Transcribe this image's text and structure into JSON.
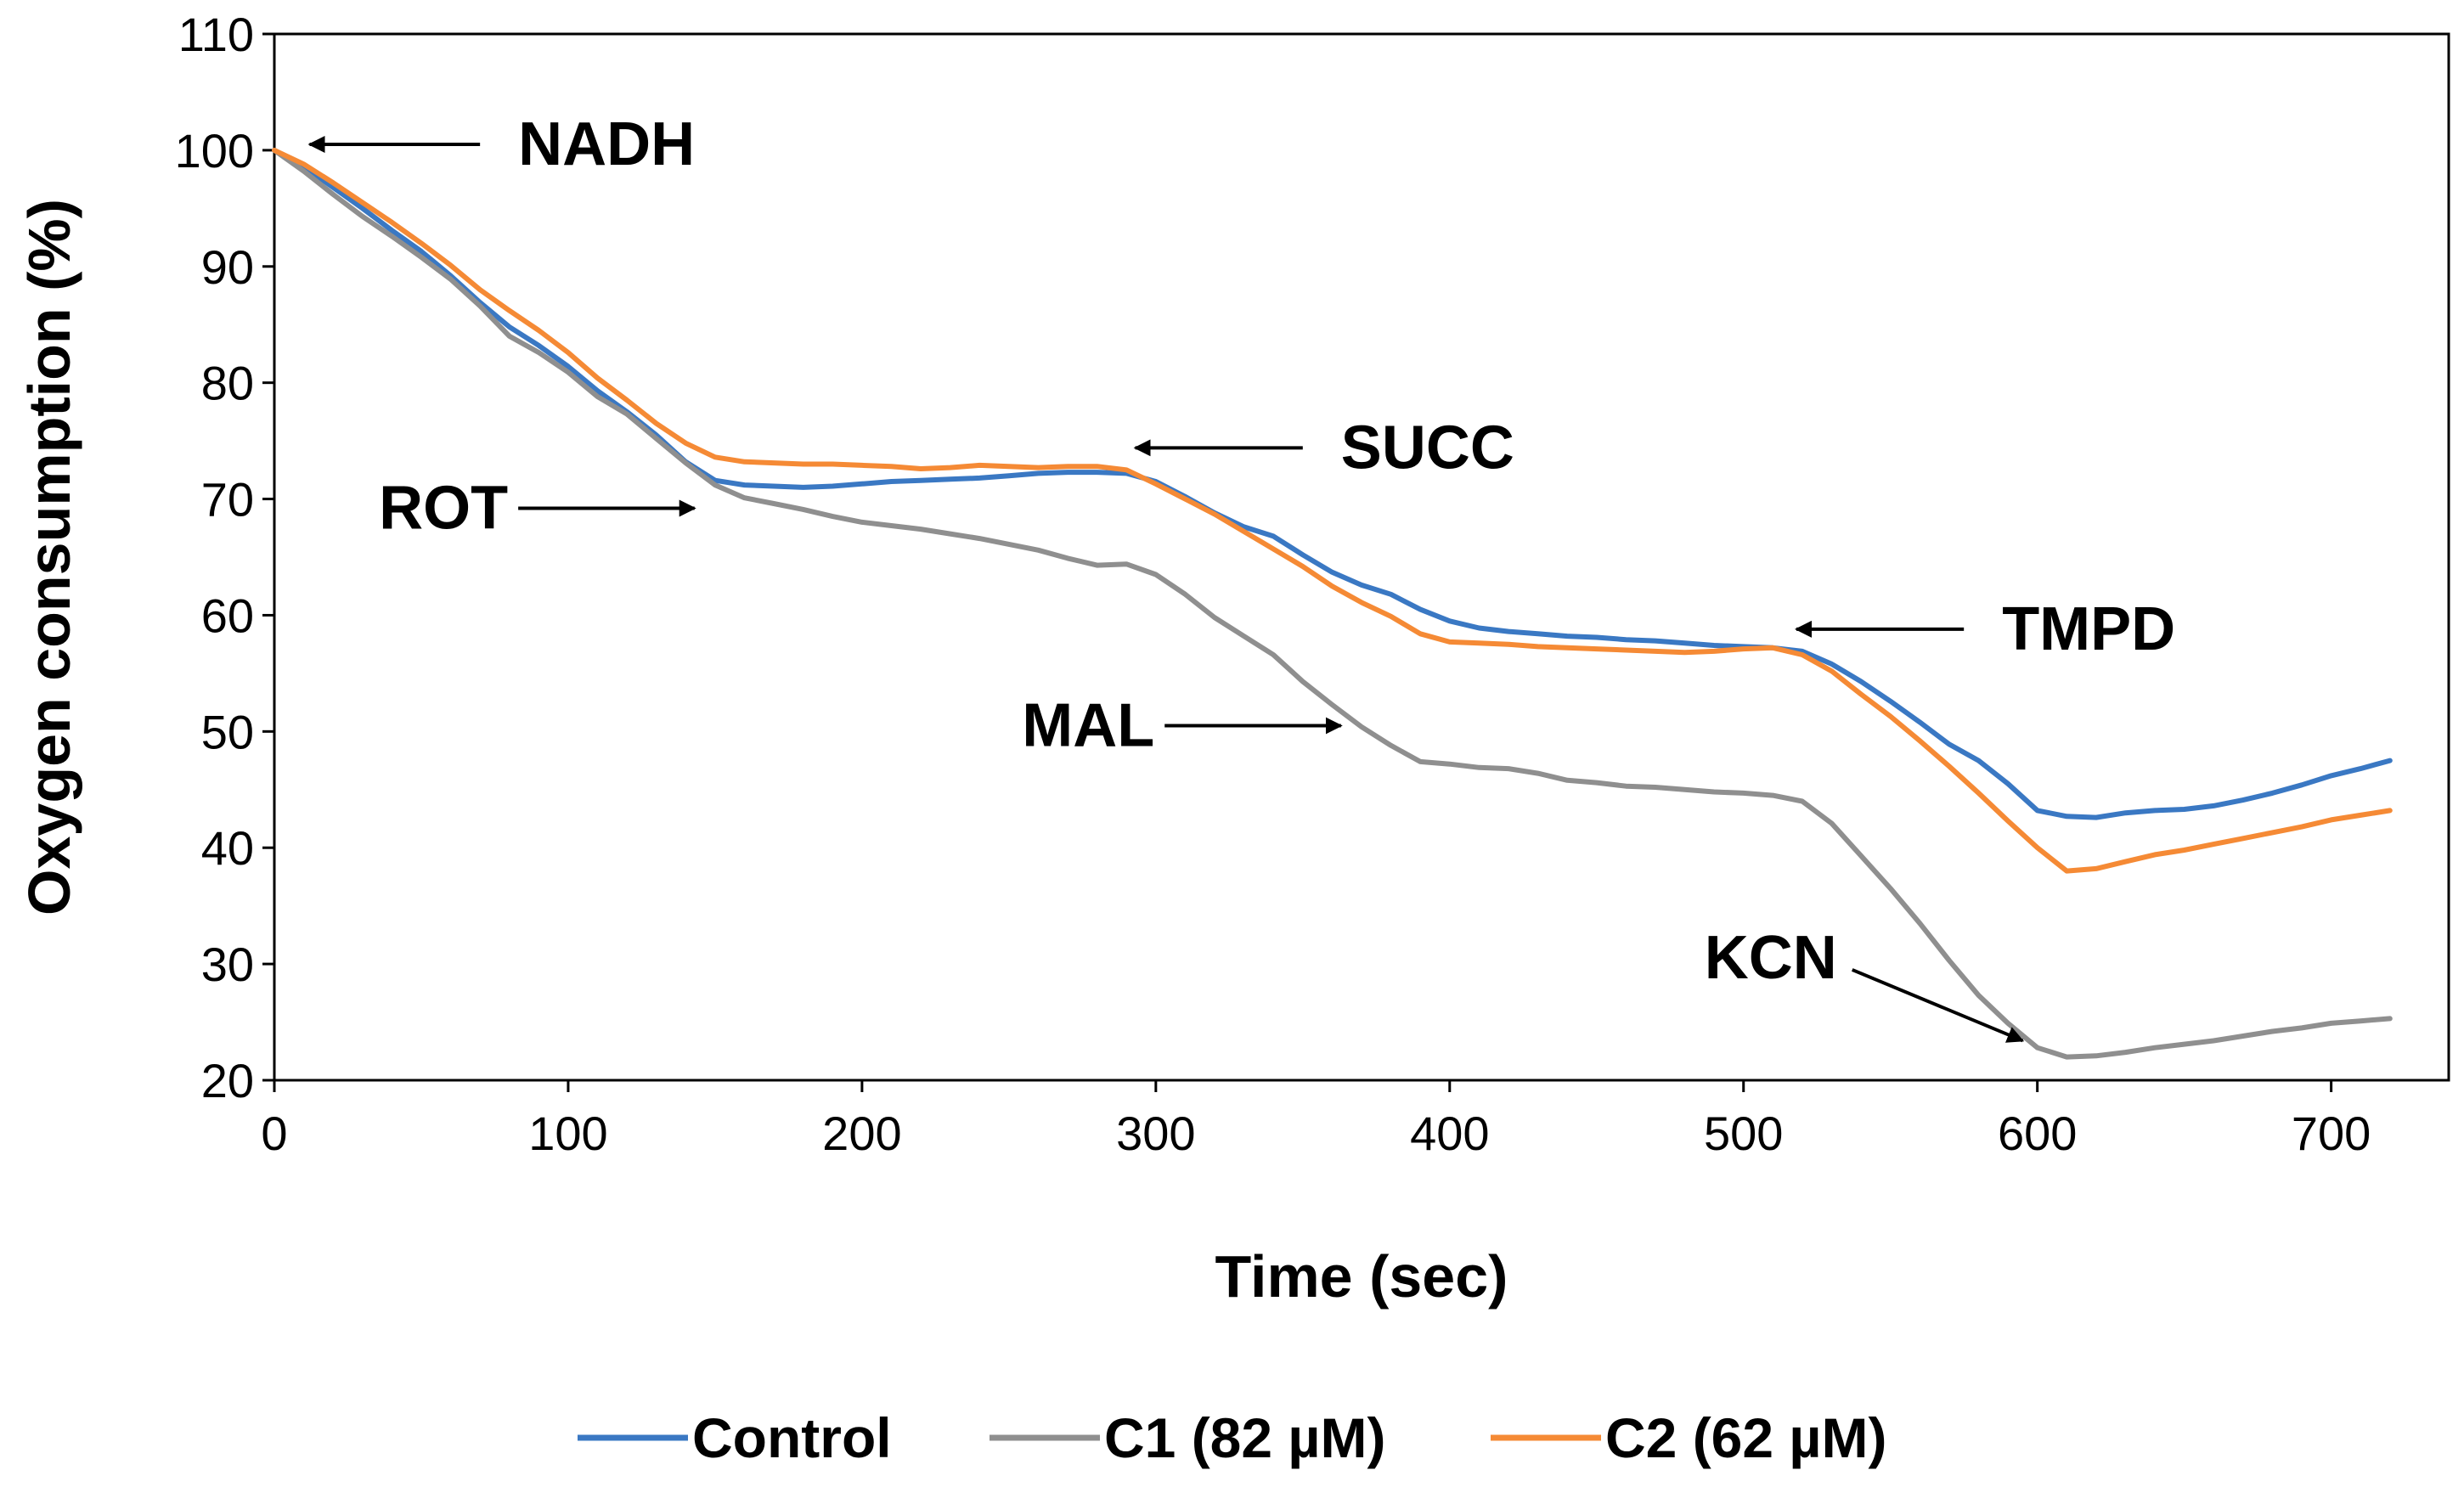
{
  "chart_data": {
    "type": "line",
    "title": "",
    "xlabel": "Time (sec)",
    "ylabel": "Oxygen consumption (%)",
    "xlim": [
      0,
      750
    ],
    "ylim": [
      20,
      110
    ],
    "xticks": [
      0,
      100,
      200,
      300,
      400,
      500,
      600,
      700
    ],
    "yticks": [
      20,
      30,
      40,
      50,
      60,
      70,
      80,
      90,
      100,
      110
    ],
    "grid": false,
    "legend_position": "bottom",
    "series": [
      {
        "name": "Control",
        "color": "#3a78c3",
        "x": [
          0,
          10,
          20,
          30,
          40,
          50,
          60,
          70,
          80,
          90,
          100,
          110,
          120,
          130,
          140,
          150,
          160,
          170,
          180,
          190,
          200,
          210,
          220,
          230,
          240,
          250,
          260,
          270,
          280,
          290,
          300,
          310,
          320,
          330,
          340,
          350,
          360,
          370,
          380,
          390,
          400,
          410,
          420,
          430,
          440,
          450,
          460,
          470,
          480,
          490,
          500,
          510,
          520,
          530,
          540,
          550,
          560,
          570,
          580,
          590,
          600,
          610,
          620,
          630,
          640,
          650,
          660,
          670,
          680,
          690,
          700,
          710,
          720
        ],
        "y": [
          100,
          98.6,
          96.8,
          95,
          93.1,
          91.3,
          89.2,
          86.9,
          84.8,
          83.2,
          81.4,
          79.3,
          77.5,
          75.5,
          73.2,
          71.6,
          71.2,
          71.1,
          71,
          71.1,
          71.3,
          71.5,
          71.6,
          71.7,
          71.8,
          72,
          72.2,
          72.3,
          72.3,
          72.2,
          71.5,
          70.2,
          68.8,
          67.6,
          66.8,
          65.2,
          63.7,
          62.6,
          61.8,
          60.5,
          59.5,
          58.9,
          58.6,
          58.4,
          58.2,
          58.1,
          57.9,
          57.8,
          57.6,
          57.4,
          57.3,
          57.2,
          56.9,
          55.8,
          54.3,
          52.6,
          50.8,
          48.9,
          47.5,
          45.5,
          43.2,
          42.7,
          42.6,
          43,
          43.2,
          43.3,
          43.6,
          44.1,
          44.7,
          45.4,
          46.2,
          46.8,
          47.5
        ]
      },
      {
        "name": "C1 (82 µM)",
        "color": "#8f8f8f",
        "x": [
          0,
          10,
          20,
          30,
          40,
          50,
          60,
          70,
          80,
          90,
          100,
          110,
          120,
          130,
          140,
          150,
          160,
          170,
          180,
          190,
          200,
          210,
          220,
          230,
          240,
          250,
          260,
          270,
          280,
          290,
          300,
          310,
          320,
          330,
          340,
          350,
          360,
          370,
          380,
          390,
          400,
          410,
          420,
          430,
          440,
          450,
          460,
          470,
          480,
          490,
          500,
          510,
          520,
          530,
          540,
          550,
          560,
          570,
          580,
          590,
          600,
          610,
          620,
          630,
          640,
          650,
          660,
          670,
          680,
          690,
          700,
          710,
          720
        ],
        "y": [
          100,
          98.2,
          96.2,
          94.3,
          92.6,
          90.8,
          88.9,
          86.6,
          84,
          82.6,
          80.9,
          78.8,
          77.3,
          75.2,
          73.1,
          71.2,
          70.1,
          69.6,
          69.1,
          68.5,
          68,
          67.7,
          67.4,
          67,
          66.6,
          66.1,
          65.6,
          64.9,
          64.3,
          64.4,
          63.5,
          61.8,
          59.8,
          58.2,
          56.6,
          54.3,
          52.3,
          50.4,
          48.8,
          47.4,
          47.2,
          46.9,
          46.8,
          46.4,
          45.8,
          45.6,
          45.3,
          45.2,
          45,
          44.8,
          44.7,
          44.5,
          44,
          42.1,
          39.3,
          36.5,
          33.5,
          30.3,
          27.3,
          24.9,
          22.8,
          22,
          22.1,
          22.4,
          22.8,
          23.1,
          23.4,
          23.8,
          24.2,
          24.5,
          24.9,
          25.1,
          25.3
        ]
      },
      {
        "name": "C2 (62 µM)",
        "color": "#f58a35",
        "x": [
          0,
          10,
          20,
          30,
          40,
          50,
          60,
          70,
          80,
          90,
          100,
          110,
          120,
          130,
          140,
          150,
          160,
          170,
          180,
          190,
          200,
          210,
          220,
          230,
          240,
          250,
          260,
          270,
          280,
          290,
          300,
          310,
          320,
          330,
          340,
          350,
          360,
          370,
          380,
          390,
          400,
          410,
          420,
          430,
          440,
          450,
          460,
          470,
          480,
          490,
          500,
          510,
          520,
          530,
          540,
          550,
          560,
          570,
          580,
          590,
          600,
          610,
          620,
          630,
          640,
          650,
          660,
          670,
          680,
          690,
          700,
          710,
          720
        ],
        "y": [
          100,
          98.8,
          97.2,
          95.5,
          93.8,
          92,
          90.1,
          88,
          86.2,
          84.5,
          82.6,
          80.4,
          78.5,
          76.5,
          74.8,
          73.6,
          73.2,
          73.1,
          73,
          73,
          72.9,
          72.8,
          72.6,
          72.7,
          72.9,
          72.8,
          72.7,
          72.8,
          72.8,
          72.5,
          71.3,
          70,
          68.7,
          67.2,
          65.7,
          64.2,
          62.5,
          61.1,
          59.9,
          58.4,
          57.7,
          57.6,
          57.5,
          57.3,
          57.2,
          57.1,
          57,
          56.9,
          56.8,
          56.9,
          57.1,
          57.2,
          56.6,
          55.2,
          53.2,
          51.3,
          49.2,
          47,
          44.7,
          42.3,
          40,
          38,
          38.2,
          38.8,
          39.4,
          39.8,
          40.3,
          40.8,
          41.3,
          41.8,
          42.4,
          42.8,
          43.2
        ]
      }
    ],
    "annotations": [
      {
        "label": "NADH",
        "tip": [
          12,
          100.5
        ],
        "from": [
          70,
          100.5
        ]
      },
      {
        "label": "ROT",
        "tip": [
          143,
          69.2
        ],
        "from": [
          83,
          69.2
        ]
      },
      {
        "label": "SUCC",
        "tip": [
          293,
          74.4
        ],
        "from": [
          350,
          74.4
        ]
      },
      {
        "label": "MAL",
        "tip": [
          363,
          50.5
        ],
        "from": [
          303,
          50.5
        ]
      },
      {
        "label": "TMPD",
        "tip": [
          518,
          58.8
        ],
        "from": [
          575,
          58.8
        ]
      },
      {
        "label": "KCN",
        "tip": [
          595,
          23.4
        ],
        "from": [
          537,
          29.5
        ]
      }
    ]
  }
}
